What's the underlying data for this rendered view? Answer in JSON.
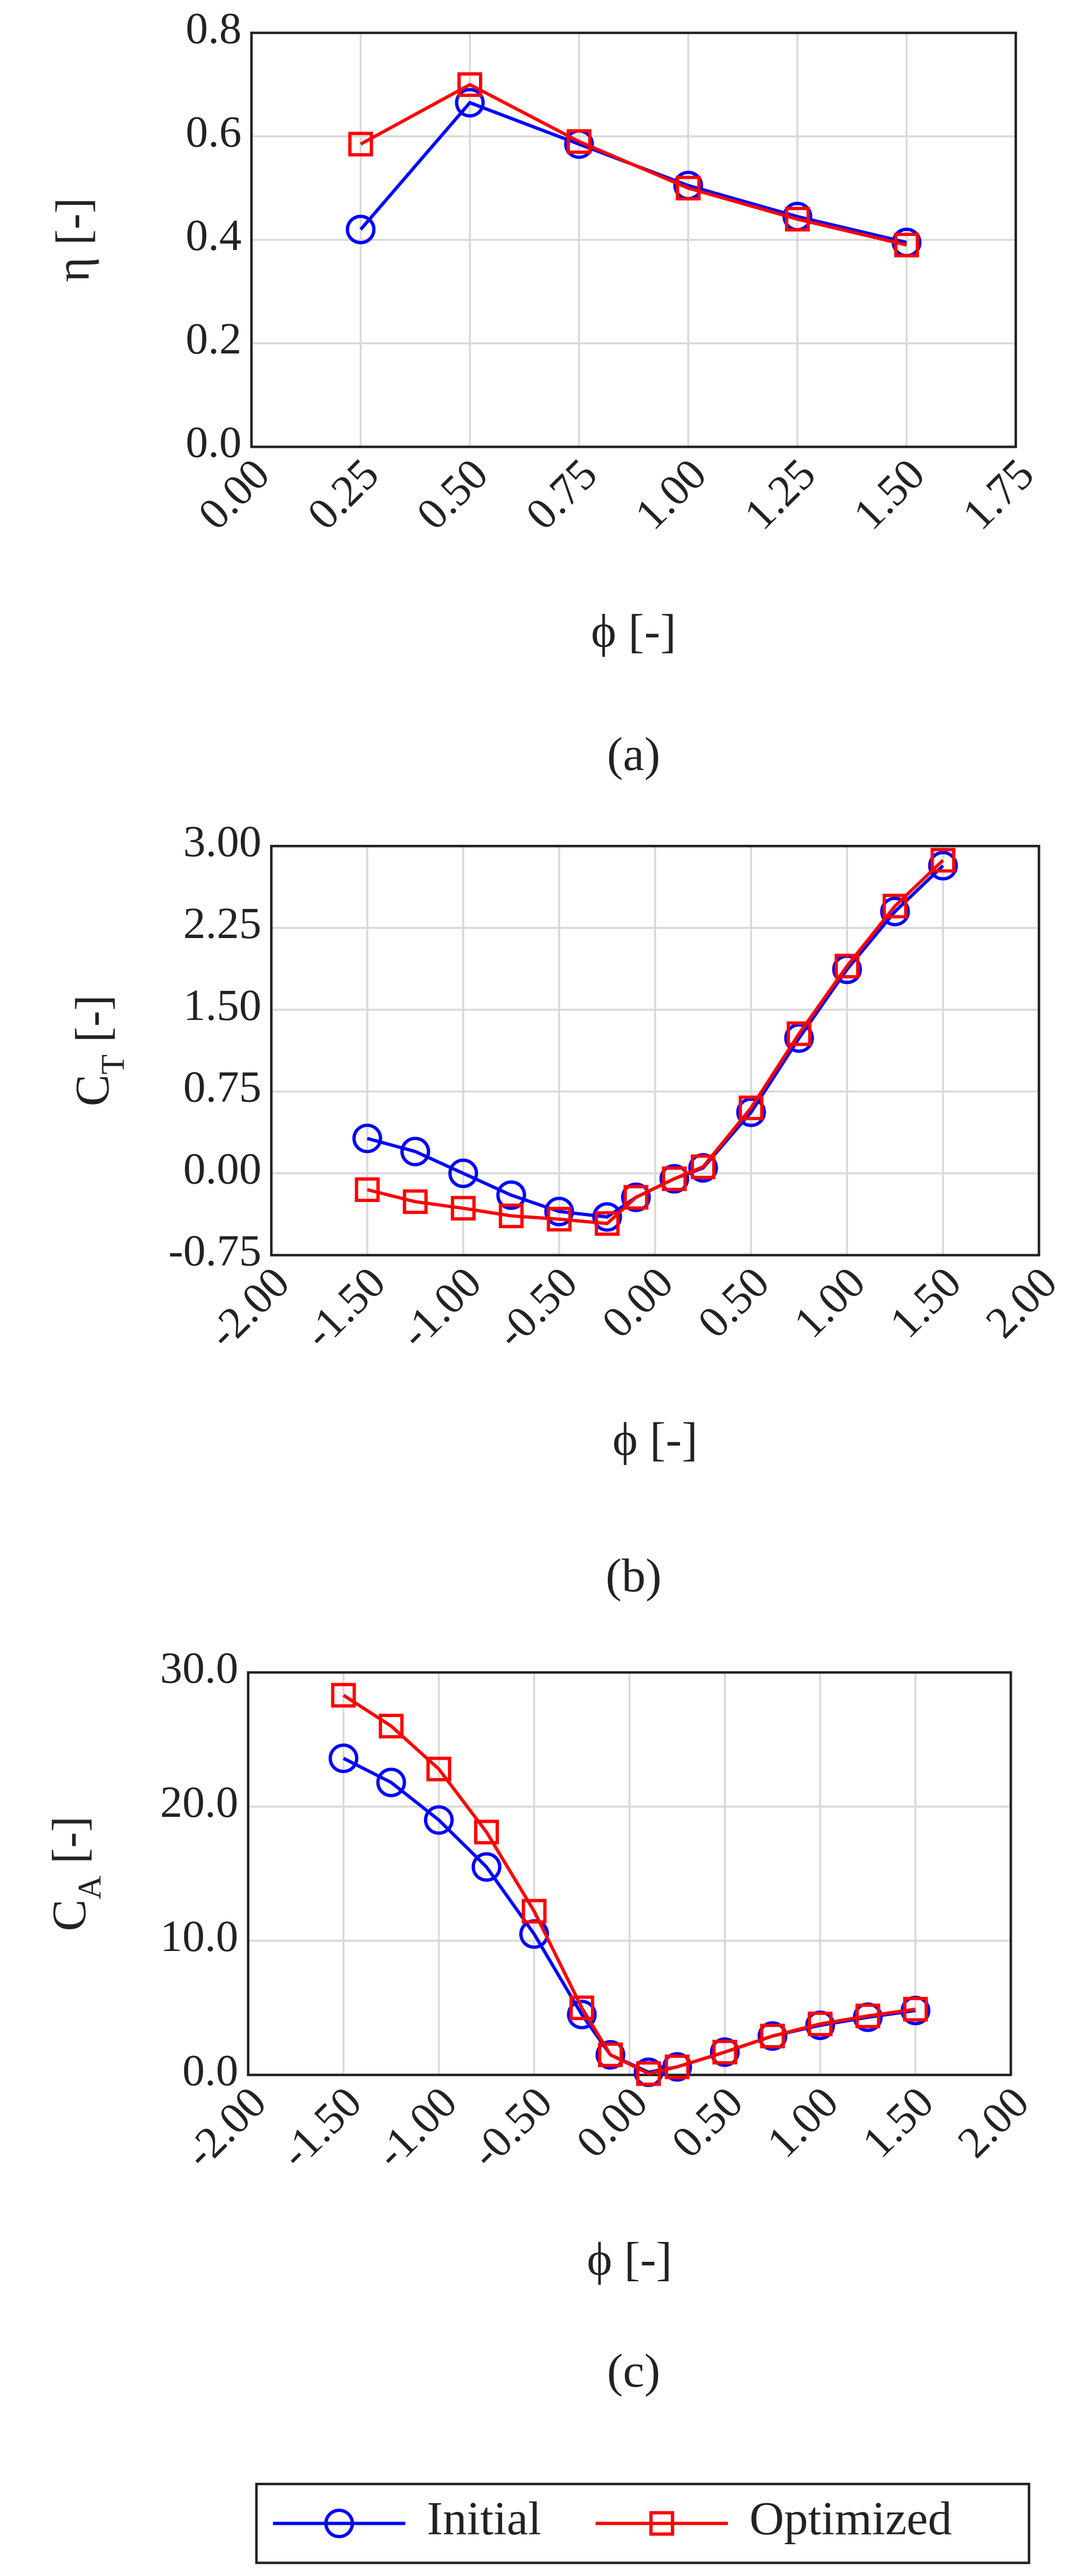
{
  "chart_data": [
    {
      "type": "line",
      "caption": "(a)",
      "xlabel": "ϕ [-]",
      "ylabel": {
        "base": "η [-]"
      },
      "xlim": [
        0,
        1.75
      ],
      "xticks": [
        {
          "value": 0,
          "label": "0.00"
        },
        {
          "value": 0.25,
          "label": "0.25"
        },
        {
          "value": 0.5,
          "label": "0.50"
        },
        {
          "value": 0.75,
          "label": "0.75"
        },
        {
          "value": 1,
          "label": "1.00"
        },
        {
          "value": 1.25,
          "label": "1.25"
        },
        {
          "value": 1.5,
          "label": "1.50"
        },
        {
          "value": 1.75,
          "label": "1.75"
        }
      ],
      "ylim": [
        0,
        0.8
      ],
      "yticks": [
        {
          "value": 0,
          "label": "0.0"
        },
        0.2,
        0.4,
        0.6,
        0.8
      ],
      "grid": true,
      "x": [
        0.25,
        0.5,
        0.75,
        1.0,
        1.25,
        1.5
      ],
      "series": [
        {
          "name": "Initial",
          "color": "#0000ff",
          "marker": "circle",
          "values": [
            0.42,
            0.665,
            0.585,
            0.505,
            0.445,
            0.395
          ]
        },
        {
          "name": "Optimized",
          "color": "#ff0000",
          "marker": "square",
          "values": [
            0.585,
            0.7,
            0.59,
            0.5,
            0.44,
            0.39
          ]
        }
      ]
    },
    {
      "type": "line",
      "caption": "(b)",
      "xlabel": "ϕ [-]",
      "ylabel": {
        "base": "C",
        "subscript": "T",
        "rest": " [-]"
      },
      "xlim": [
        -2,
        2
      ],
      "xticks": [
        {
          "value": -2,
          "label": "-2.00"
        },
        {
          "value": -1.5,
          "label": "-1.50"
        },
        {
          "value": -1,
          "label": "-1.00"
        },
        {
          "value": -0.5,
          "label": "-0.50"
        },
        {
          "value": 0,
          "label": "0.00"
        },
        {
          "value": 0.5,
          "label": "0.50"
        },
        {
          "value": 1,
          "label": "1.00"
        },
        {
          "value": 1.5,
          "label": "1.50"
        },
        {
          "value": 2,
          "label": "2.00"
        }
      ],
      "ylim": [
        -0.75,
        3
      ],
      "yticks": [
        {
          "value": -0.75,
          "label": "-0.75"
        },
        {
          "value": 0,
          "label": "0.00"
        },
        0.75,
        {
          "value": 1.5,
          "label": "1.50"
        },
        2.25,
        {
          "value": 3,
          "label": "3.00"
        }
      ],
      "grid": true,
      "x": [
        -1.5,
        -1.25,
        -1.0,
        -0.75,
        -0.5,
        -0.25,
        -0.1,
        0.1,
        0.25,
        0.5,
        0.75,
        1.0,
        1.25,
        1.5
      ],
      "series": [
        {
          "name": "Initial",
          "color": "#0000ff",
          "marker": "circle",
          "values": [
            0.32,
            0.2,
            0.0,
            -0.2,
            -0.35,
            -0.4,
            -0.22,
            -0.05,
            0.05,
            0.56,
            1.24,
            1.87,
            2.4,
            2.82
          ]
        },
        {
          "name": "Optimized",
          "color": "#ff0000",
          "marker": "square",
          "values": [
            -0.15,
            -0.26,
            -0.32,
            -0.39,
            -0.42,
            -0.46,
            -0.22,
            -0.05,
            0.06,
            0.6,
            1.28,
            1.9,
            2.45,
            2.87
          ]
        }
      ]
    },
    {
      "type": "line",
      "caption": "(c)",
      "xlabel": "ϕ [-]",
      "ylabel": {
        "base": "C",
        "subscript": "A",
        "rest": " [-]"
      },
      "xlim": [
        -2,
        2
      ],
      "xticks": [
        {
          "value": -2,
          "label": "-2.00"
        },
        {
          "value": -1.5,
          "label": "-1.50"
        },
        {
          "value": -1,
          "label": "-1.00"
        },
        {
          "value": -0.5,
          "label": "-0.50"
        },
        {
          "value": 0,
          "label": "0.00"
        },
        {
          "value": 0.5,
          "label": "0.50"
        },
        {
          "value": 1,
          "label": "1.00"
        },
        {
          "value": 1.5,
          "label": "1.50"
        },
        {
          "value": 2,
          "label": "2.00"
        }
      ],
      "ylim": [
        0,
        30
      ],
      "yticks": [
        {
          "value": 0,
          "label": "0.0"
        },
        {
          "value": 10,
          "label": "10.0"
        },
        {
          "value": 20,
          "label": "20.0"
        },
        {
          "value": 30,
          "label": "30.0"
        }
      ],
      "grid": true,
      "x": [
        -1.5,
        -1.25,
        -1.0,
        -0.75,
        -0.5,
        -0.25,
        -0.1,
        0.1,
        0.25,
        0.5,
        0.75,
        1.0,
        1.25,
        1.5
      ],
      "series": [
        {
          "name": "Initial",
          "color": "#0000ff",
          "marker": "circle",
          "values": [
            23.6,
            21.8,
            19.0,
            15.5,
            10.5,
            4.5,
            1.5,
            0.2,
            0.6,
            1.7,
            2.9,
            3.7,
            4.3,
            4.8
          ]
        },
        {
          "name": "Optimized",
          "color": "#ff0000",
          "marker": "square",
          "values": [
            28.3,
            26.0,
            22.8,
            18.1,
            12.2,
            5.0,
            1.5,
            0.1,
            0.6,
            1.7,
            2.9,
            3.8,
            4.4,
            4.9
          ]
        }
      ]
    }
  ]
}
